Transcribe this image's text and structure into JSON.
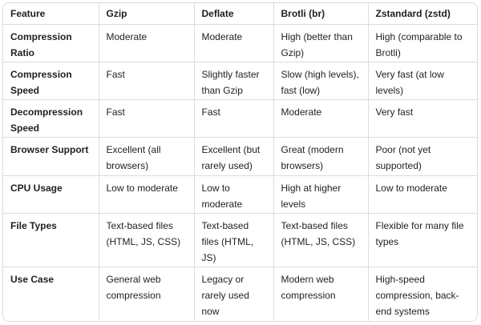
{
  "table": {
    "headers": [
      "Feature",
      "Gzip",
      "Deflate",
      "Brotli (br)",
      "Zstandard (zstd)"
    ],
    "rows": [
      [
        "Compression Ratio",
        "Moderate",
        "Moderate",
        "High (better than Gzip)",
        "High (comparable to Brotli)"
      ],
      [
        "Compression Speed",
        "Fast",
        "Slightly faster than Gzip",
        "Slow (high levels), fast (low)",
        "Very fast (at low levels)"
      ],
      [
        "Decompression Speed",
        "Fast",
        "Fast",
        "Moderate",
        "Very fast"
      ],
      [
        "Browser Support",
        "Excellent (all browsers)",
        "Excellent (but rarely used)",
        "Great (modern browsers)",
        "Poor (not yet supported)"
      ],
      [
        "CPU Usage",
        "Low to moderate",
        "Low to moderate",
        "High at higher levels",
        "Low to moderate"
      ],
      [
        "File Types",
        "Text-based files (HTML, JS, CSS)",
        "Text-based files (HTML, JS)",
        "Text-based files (HTML, JS, CSS)",
        "Flexible for many file types"
      ],
      [
        "Use Case",
        "General web compression",
        "Legacy or rarely used now",
        "Modern web compression",
        "High-speed compression, back-end systems"
      ]
    ]
  }
}
